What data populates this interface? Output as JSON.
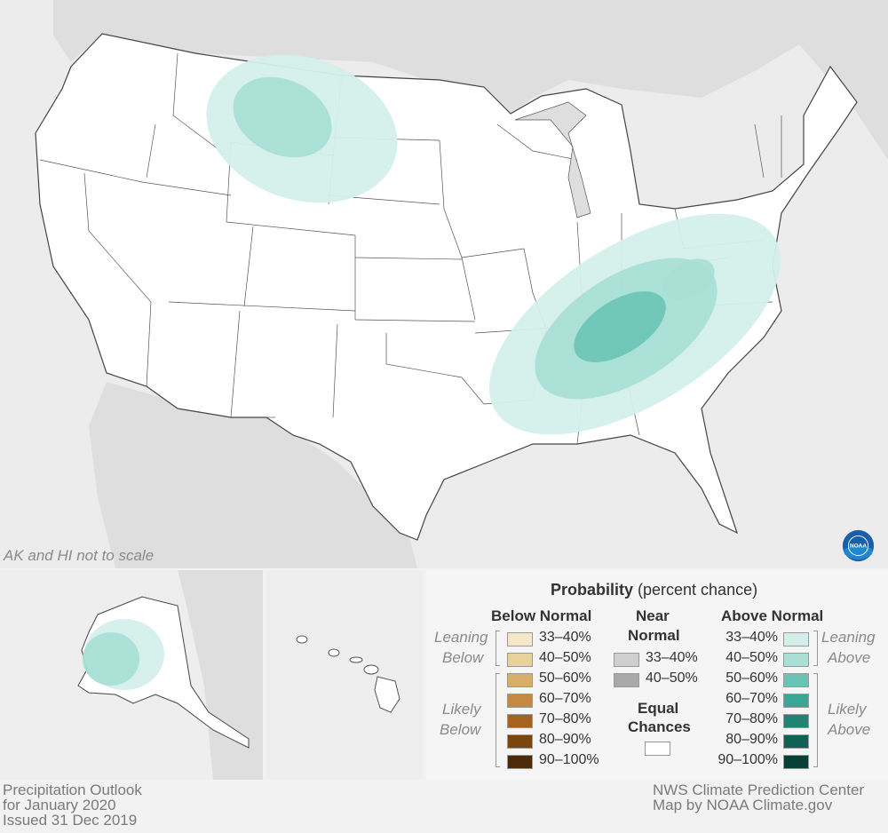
{
  "map": {
    "scale_note": "AK and HI not to scale"
  },
  "legend": {
    "title_bold": "Probability",
    "title_rest": " (percent chance)",
    "below": {
      "heading": "Below Normal",
      "leaning_label": [
        "Leaning",
        "Below"
      ],
      "likely_label": [
        "Likely",
        "Below"
      ],
      "items": [
        {
          "label": "33–40%",
          "color": "#f5e8c8"
        },
        {
          "label": "40–50%",
          "color": "#e8d19c"
        },
        {
          "label": "50–60%",
          "color": "#d9ae68"
        },
        {
          "label": "60–70%",
          "color": "#c48a3f"
        },
        {
          "label": "70–80%",
          "color": "#a4641f"
        },
        {
          "label": "80–90%",
          "color": "#7a4610"
        },
        {
          "label": "90–100%",
          "color": "#4d2a06"
        }
      ]
    },
    "near": {
      "heading": [
        "Near",
        "Normal"
      ],
      "items": [
        {
          "label": "33–40%",
          "color": "#cfcfcf"
        },
        {
          "label": "40–50%",
          "color": "#a9a9a9"
        }
      ]
    },
    "equal": {
      "heading": [
        "Equal",
        "Chances"
      ],
      "color": "#ffffff"
    },
    "above": {
      "heading": "Above Normal",
      "leaning_label": [
        "Leaning",
        "Above"
      ],
      "likely_label": [
        "Likely",
        "Above"
      ],
      "items": [
        {
          "label": "33–40%",
          "color": "#d4efea"
        },
        {
          "label": "40–50%",
          "color": "#a9dfd5"
        },
        {
          "label": "50–60%",
          "color": "#6ac4b5"
        },
        {
          "label": "60–70%",
          "color": "#3aa695"
        },
        {
          "label": "70–80%",
          "color": "#1f8473"
        },
        {
          "label": "80–90%",
          "color": "#0f6253"
        },
        {
          "label": "90–100%",
          "color": "#063f35"
        }
      ]
    }
  },
  "footer": {
    "left": [
      "Precipitation Outlook",
      "for January 2020",
      "Issued 31 Dec 2019"
    ],
    "right": [
      "NWS Climate Prediction Center",
      "Map by NOAA Climate.gov"
    ]
  },
  "logo": {
    "text": "NOAA",
    "icon": "noaa-logo-icon"
  },
  "colors": {
    "map_background": "#ececec",
    "land": "#ffffff",
    "border": "#444444"
  }
}
